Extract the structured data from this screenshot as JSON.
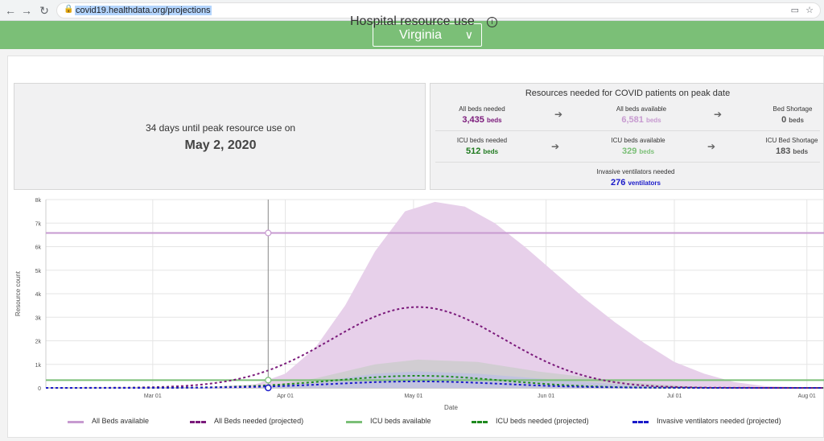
{
  "browser": {
    "url": "covid19.healthdata.org/projections",
    "back_icon": "←",
    "forward_icon": "→",
    "reload_icon": "↻"
  },
  "header": {
    "state": "Virginia"
  },
  "card": {
    "title": "Hospital resource use"
  },
  "peak": {
    "days_text": "34 days until peak resource use on",
    "date": "May 2, 2020"
  },
  "resources": {
    "title": "Resources needed for COVID patients on peak date",
    "all_beds_needed": {
      "label": "All beds needed",
      "value": "3,435",
      "unit": "beds"
    },
    "all_beds_available": {
      "label": "All beds available",
      "value": "6,581",
      "unit": "beds"
    },
    "bed_shortage": {
      "label": "Bed Shortage",
      "value": "0",
      "unit": "beds"
    },
    "icu_beds_needed": {
      "label": "ICU beds needed",
      "value": "512",
      "unit": "beds"
    },
    "icu_beds_available": {
      "label": "ICU beds available",
      "value": "329",
      "unit": "beds"
    },
    "icu_bed_shortage": {
      "label": "ICU Bed Shortage",
      "value": "183",
      "unit": "beds"
    },
    "ventilators": {
      "label": "Invasive ventilators needed",
      "value": "276",
      "unit": "ventilators"
    }
  },
  "chart_data": {
    "type": "line",
    "xlabel": "Date",
    "ylabel": "Resource count",
    "x_ticks": [
      "Mar 01",
      "Apr 01",
      "May 01",
      "Jun 01",
      "Jul 01",
      "Aug 01"
    ],
    "y_ticks": [
      "0",
      "1k",
      "2k",
      "3k",
      "4k",
      "5k",
      "6k",
      "7k",
      "8k"
    ],
    "ylim": [
      0,
      8000
    ],
    "x_domain": [
      "2020-02-05",
      "2020-08-05"
    ],
    "today": "2020-03-28",
    "all_beds_available": 6581,
    "icu_beds_available": 329,
    "series": [
      {
        "name": "All Beds needed (projected)",
        "peak_date": "2020-05-02",
        "peak": 3435,
        "color": "#7b1a7b",
        "band": [
          [
            "2020-03-10",
            0
          ],
          [
            "2020-03-25",
            150
          ],
          [
            "2020-04-01",
            600
          ],
          [
            "2020-04-08",
            1700
          ],
          [
            "2020-04-15",
            3500
          ],
          [
            "2020-04-22",
            5800
          ],
          [
            "2020-04-29",
            7500
          ],
          [
            "2020-05-06",
            7900
          ],
          [
            "2020-05-13",
            7700
          ],
          [
            "2020-05-20",
            7000
          ],
          [
            "2020-05-27",
            6000
          ],
          [
            "2020-06-03",
            4900
          ],
          [
            "2020-06-10",
            3800
          ],
          [
            "2020-06-17",
            2800
          ],
          [
            "2020-06-24",
            1900
          ],
          [
            "2020-07-01",
            1100
          ],
          [
            "2020-07-08",
            600
          ],
          [
            "2020-07-15",
            250
          ],
          [
            "2020-07-22",
            80
          ],
          [
            "2020-08-05",
            0
          ]
        ]
      },
      {
        "name": "ICU beds needed (projected)",
        "peak_date": "2020-05-02",
        "peak": 512,
        "color": "#1f8a1f",
        "band": [
          [
            "2020-03-25",
            0
          ],
          [
            "2020-04-08",
            400
          ],
          [
            "2020-04-22",
            1000
          ],
          [
            "2020-05-02",
            1200
          ],
          [
            "2020-05-16",
            1100
          ],
          [
            "2020-05-30",
            700
          ],
          [
            "2020-06-20",
            250
          ],
          [
            "2020-07-10",
            0
          ]
        ]
      },
      {
        "name": "Invasive ventilators needed (projected)",
        "peak_date": "2020-05-02",
        "peak": 276,
        "color": "#1a1ac9",
        "band": [
          [
            "2020-03-25",
            0
          ],
          [
            "2020-04-08",
            250
          ],
          [
            "2020-04-22",
            600
          ],
          [
            "2020-05-02",
            700
          ],
          [
            "2020-05-16",
            600
          ],
          [
            "2020-05-30",
            400
          ],
          [
            "2020-06-20",
            120
          ],
          [
            "2020-07-10",
            0
          ]
        ]
      }
    ],
    "legend": [
      {
        "label": "All Beds available",
        "color": "#c79ad0",
        "style": "solid"
      },
      {
        "label": "All Beds needed (projected)",
        "color": "#7b1a7b",
        "style": "dashed"
      },
      {
        "label": "ICU beds available",
        "color": "#7bbf77",
        "style": "solid"
      },
      {
        "label": "ICU beds needed (projected)",
        "color": "#1f8a1f",
        "style": "dashed"
      },
      {
        "label": "Invasive ventilators needed (projected)",
        "color": "#1a1ac9",
        "style": "dashed"
      }
    ]
  }
}
